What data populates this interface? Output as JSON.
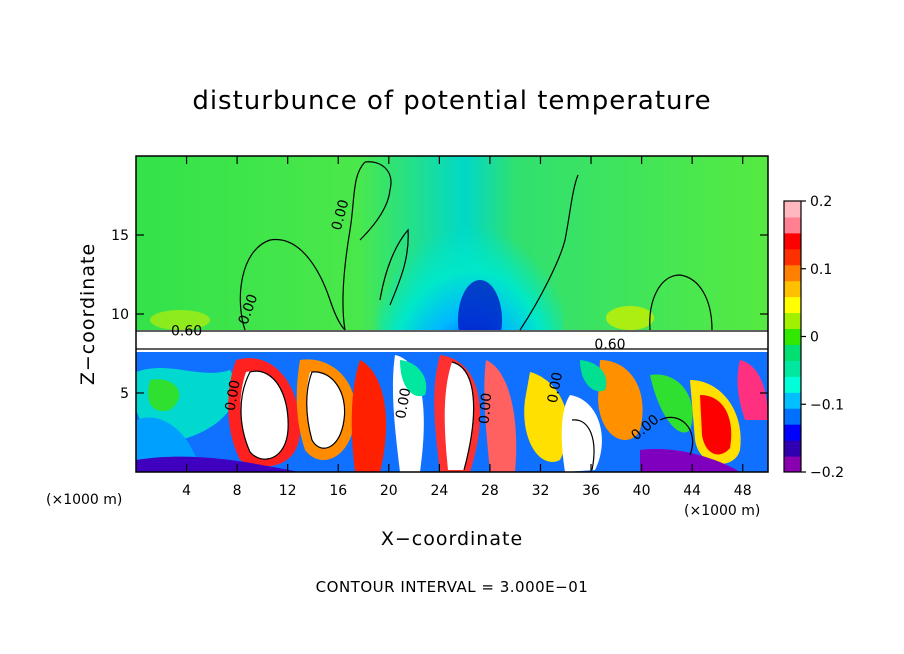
{
  "chart_data": {
    "type": "heatmap",
    "title": "disturbunce of potential temperature",
    "xlabel": "X−coordinate",
    "ylabel": "Z−coordinate",
    "x_unit_left": "(×1000 m)",
    "x_unit_right": "(×1000 m)",
    "xlim": [
      0,
      50
    ],
    "ylim": [
      0,
      20
    ],
    "x_ticks": [
      4,
      8,
      12,
      16,
      20,
      24,
      28,
      32,
      36,
      40,
      44,
      48
    ],
    "y_ticks": [
      5,
      10,
      15
    ],
    "x_tick_labels": [
      "4",
      "8",
      "12",
      "16",
      "20",
      "24",
      "28",
      "32",
      "36",
      "40",
      "44",
      "48"
    ],
    "y_tick_labels": [
      "5",
      "10",
      "15"
    ],
    "colorbar": {
      "range": [
        -0.2,
        0.2
      ],
      "tick_values": [
        0.2,
        0.1,
        0,
        -0.1,
        -0.2
      ],
      "tick_labels": [
        "0.2",
        "0.1",
        "0",
        "−0.1",
        "−0.2"
      ],
      "colors": [
        "#8a00b0",
        "#3000b0",
        "#0000ff",
        "#0070ff",
        "#00c0ff",
        "#00ffd8",
        "#00e8a0",
        "#00e070",
        "#30e800",
        "#a0f000",
        "#ffff00",
        "#ffc000",
        "#ff8000",
        "#ff3000",
        "#ff0000",
        "#ff8090",
        "#ffb8c0"
      ]
    },
    "contour_labels": [
      "0.60",
      "0.60",
      "0.00",
      "0.00",
      "0.00",
      "0.00",
      "0.00",
      "0.00",
      "0.00"
    ],
    "footer": "CONTOUR INTERVAL = 3.000E−01"
  }
}
